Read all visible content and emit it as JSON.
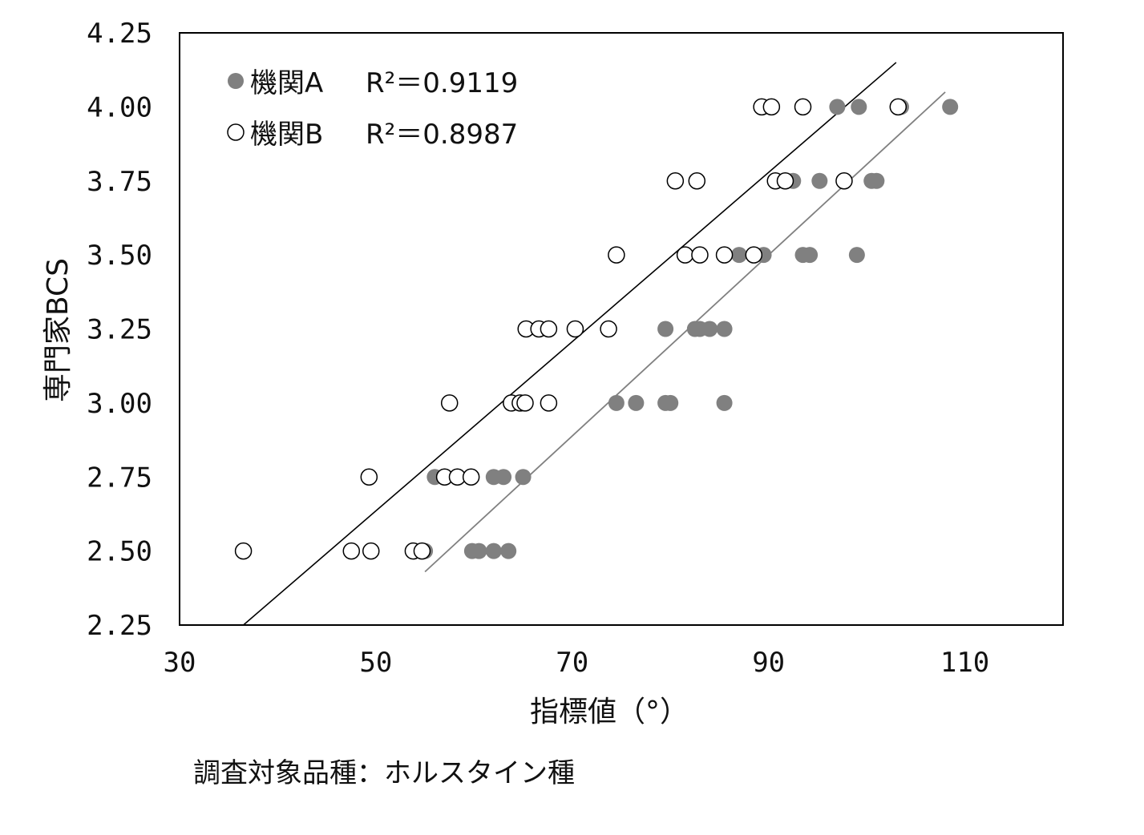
{
  "chart_data": {
    "type": "scatter",
    "xlabel": "指標値（°）",
    "ylabel": "専門家BCS",
    "xlim": [
      30,
      120
    ],
    "ylim": [
      2.25,
      4.25
    ],
    "xticks": [
      "30",
      "50",
      "70",
      "90",
      "110"
    ],
    "xtick_values": [
      30,
      50,
      70,
      90,
      110
    ],
    "yticks": [
      "4.25",
      "4.00",
      "3.75",
      "3.50",
      "3.25",
      "3.00",
      "2.75",
      "2.50",
      "2.25"
    ],
    "ytick_values": [
      4.25,
      4.0,
      3.75,
      3.5,
      3.25,
      3.0,
      2.75,
      2.5,
      2.25
    ],
    "legend_position": "top-left",
    "grid": false,
    "caption": "調査対象品種：ホルスタイン種",
    "series": [
      {
        "name": "機関A",
        "r2_label": "R²＝0.9119",
        "marker": "filled",
        "color": "#808080",
        "points": [
          [
            55,
            2.5
          ],
          [
            59.8,
            2.5
          ],
          [
            60.5,
            2.5
          ],
          [
            62,
            2.5
          ],
          [
            63.5,
            2.5
          ],
          [
            56,
            2.75
          ],
          [
            62,
            2.75
          ],
          [
            63,
            2.75
          ],
          [
            65,
            2.75
          ],
          [
            74.5,
            3.0
          ],
          [
            76.5,
            3.0
          ],
          [
            79.5,
            3.0
          ],
          [
            80,
            3.0
          ],
          [
            85.5,
            3.0
          ],
          [
            79.5,
            3.25
          ],
          [
            82.5,
            3.25
          ],
          [
            83,
            3.25
          ],
          [
            84,
            3.25
          ],
          [
            85.5,
            3.25
          ],
          [
            87,
            3.5
          ],
          [
            89.5,
            3.5
          ],
          [
            93.5,
            3.5
          ],
          [
            94.2,
            3.5
          ],
          [
            99,
            3.5
          ],
          [
            92.5,
            3.75
          ],
          [
            95.2,
            3.75
          ],
          [
            100.5,
            3.75
          ],
          [
            101,
            3.75
          ],
          [
            97,
            4.0
          ],
          [
            99.2,
            4.0
          ],
          [
            103.5,
            4.0
          ],
          [
            108.5,
            4.0
          ]
        ],
        "trendline": {
          "x": [
            55,
            108
          ],
          "y": [
            2.43,
            4.05
          ],
          "color": "#808080"
        }
      },
      {
        "name": "機関B",
        "r2_label": "R²＝0.8987",
        "marker": "hollow",
        "color": "#000000",
        "points": [
          [
            36.5,
            2.5
          ],
          [
            47.5,
            2.5
          ],
          [
            49.5,
            2.5
          ],
          [
            53.8,
            2.5
          ],
          [
            54.7,
            2.5
          ],
          [
            49.3,
            2.75
          ],
          [
            57,
            2.75
          ],
          [
            58.3,
            2.75
          ],
          [
            59.7,
            2.75
          ],
          [
            57.5,
            3.0
          ],
          [
            63.8,
            3.0
          ],
          [
            64.7,
            3.0
          ],
          [
            65.2,
            3.0
          ],
          [
            67.6,
            3.0
          ],
          [
            65.3,
            3.25
          ],
          [
            66.6,
            3.25
          ],
          [
            67.6,
            3.25
          ],
          [
            70.3,
            3.25
          ],
          [
            73.7,
            3.25
          ],
          [
            74.5,
            3.5
          ],
          [
            81.5,
            3.5
          ],
          [
            83,
            3.5
          ],
          [
            85.5,
            3.5
          ],
          [
            88.5,
            3.5
          ],
          [
            80.5,
            3.75
          ],
          [
            82.7,
            3.75
          ],
          [
            90.7,
            3.75
          ],
          [
            91.7,
            3.75
          ],
          [
            97.7,
            3.75
          ],
          [
            89.3,
            4.0
          ],
          [
            90.3,
            4.0
          ],
          [
            93.5,
            4.0
          ],
          [
            103.2,
            4.0
          ]
        ],
        "trendline": {
          "x": [
            36.5,
            103
          ],
          "y": [
            2.25,
            4.15
          ],
          "color": "#000000"
        }
      }
    ]
  }
}
